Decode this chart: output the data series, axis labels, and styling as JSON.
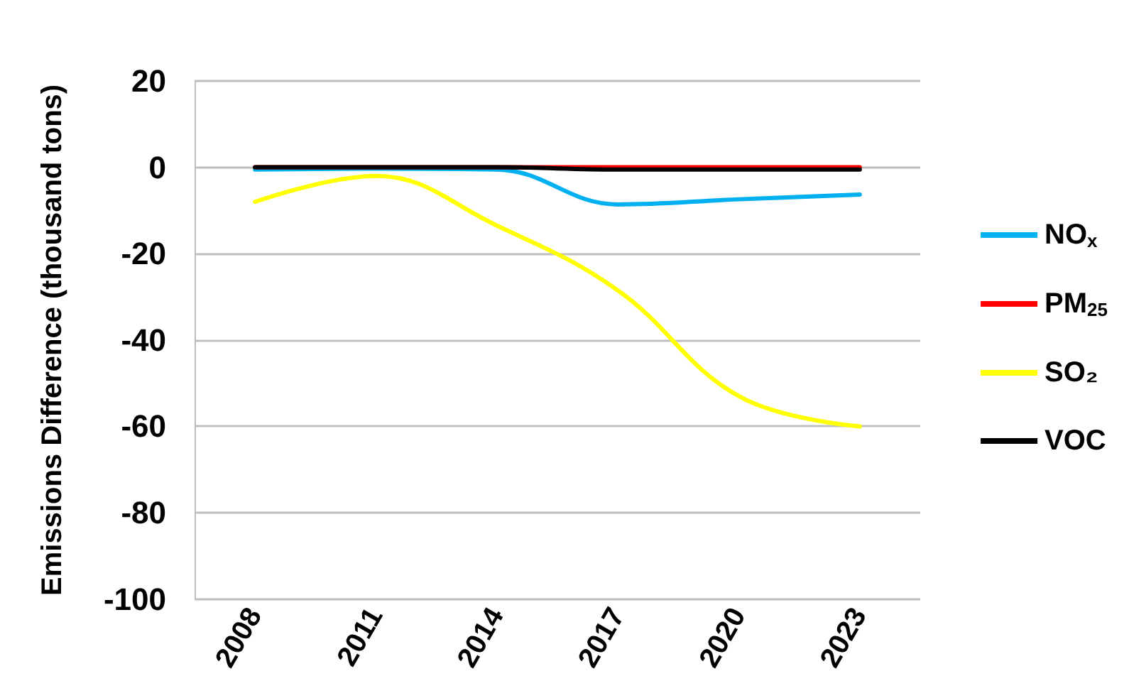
{
  "chart_data": {
    "type": "line",
    "ylabel": "Emissions Difference (thousand tons)",
    "categories": [
      "2008",
      "2011",
      "2014",
      "2017",
      "2020",
      "2023"
    ],
    "series": [
      {
        "name": "NO$_{x}$",
        "color": "#00b0f0",
        "values": [
          -0.5,
          -0.3,
          -0.5,
          -8.6,
          -7.4,
          -6.3
        ]
      },
      {
        "name": "PM$_{25}$",
        "color": "#ff0000",
        "values": [
          0,
          0,
          0,
          0,
          0,
          0
        ]
      },
      {
        "name": "SO₂",
        "color": "#ffff00",
        "values": [
          -8,
          -2,
          -13.5,
          -28.5,
          -53,
          -60
        ]
      },
      {
        "name": "VOC",
        "color": "#000000",
        "values": [
          0,
          0,
          0,
          -0.5,
          -0.5,
          -0.5
        ]
      }
    ],
    "ylim": [
      -100,
      20
    ],
    "yticks": [
      -100,
      -80,
      -60,
      -40,
      -20,
      0,
      20
    ],
    "grid": "y",
    "legend": "right",
    "marker": "none",
    "line_style": "solid"
  }
}
